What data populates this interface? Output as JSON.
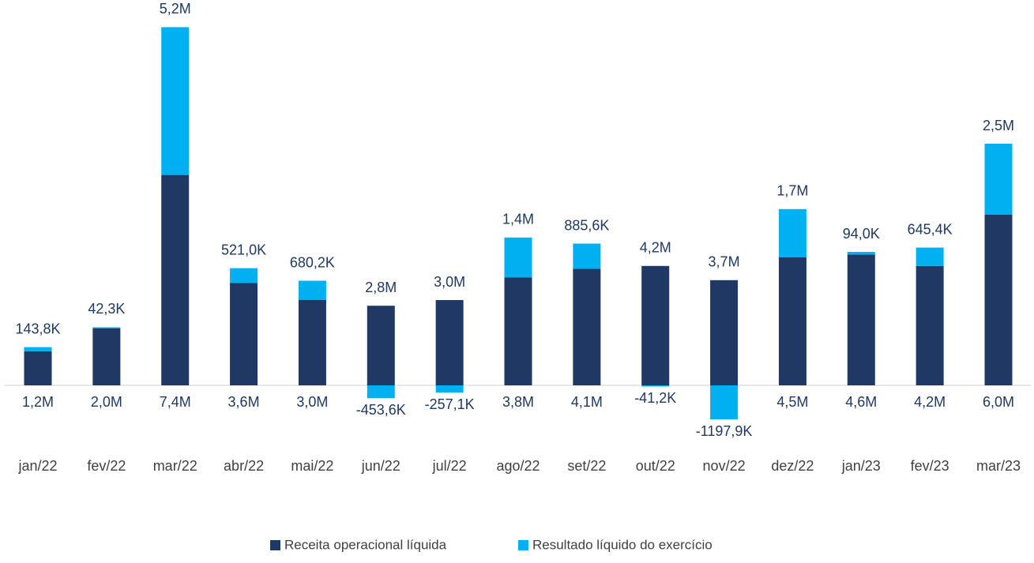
{
  "chart_data": {
    "type": "stacked-bar",
    "categories": [
      "jan/22",
      "fev/22",
      "mar/22",
      "abr/22",
      "mai/22",
      "jun/22",
      "jul/22",
      "ago/22",
      "set/22",
      "out/22",
      "nov/22",
      "dez/22",
      "jan/23",
      "fev/23",
      "mar/23"
    ],
    "series": [
      {
        "name": "Receita operacional líquida",
        "color": "#1f3864",
        "values": [
          1200000,
          2000000,
          7400000,
          3600000,
          3000000,
          2800000,
          3000000,
          3800000,
          4100000,
          4200000,
          3700000,
          4500000,
          4600000,
          4200000,
          6000000
        ],
        "value_labels": [
          "1,2M",
          "2,0M",
          "7,4M",
          "3,6M",
          "3,0M",
          "2,8M",
          "3,0M",
          "3,8M",
          "4,1M",
          "4,2M",
          "3,7M",
          "4,5M",
          "4,6M",
          "4,2M",
          "6,0M"
        ]
      },
      {
        "name": "Resultado líquido do exercício",
        "color": "#00b0f0",
        "values": [
          143800,
          42300,
          5200000,
          521000,
          680200,
          -453600,
          -257100,
          1400000,
          885600,
          -41200,
          -1197900,
          1700000,
          94000,
          645400,
          2500000
        ],
        "value_labels": [
          "143,8K",
          "42,3K",
          "5,2M",
          "521,0K",
          "680,2K",
          "-453,6K",
          "-257,1K",
          "1,4M",
          "885,6K",
          "-41,2K",
          "-1197,9K",
          "1,7M",
          "94,0K",
          "645,4K",
          "2,5M"
        ]
      }
    ]
  }
}
